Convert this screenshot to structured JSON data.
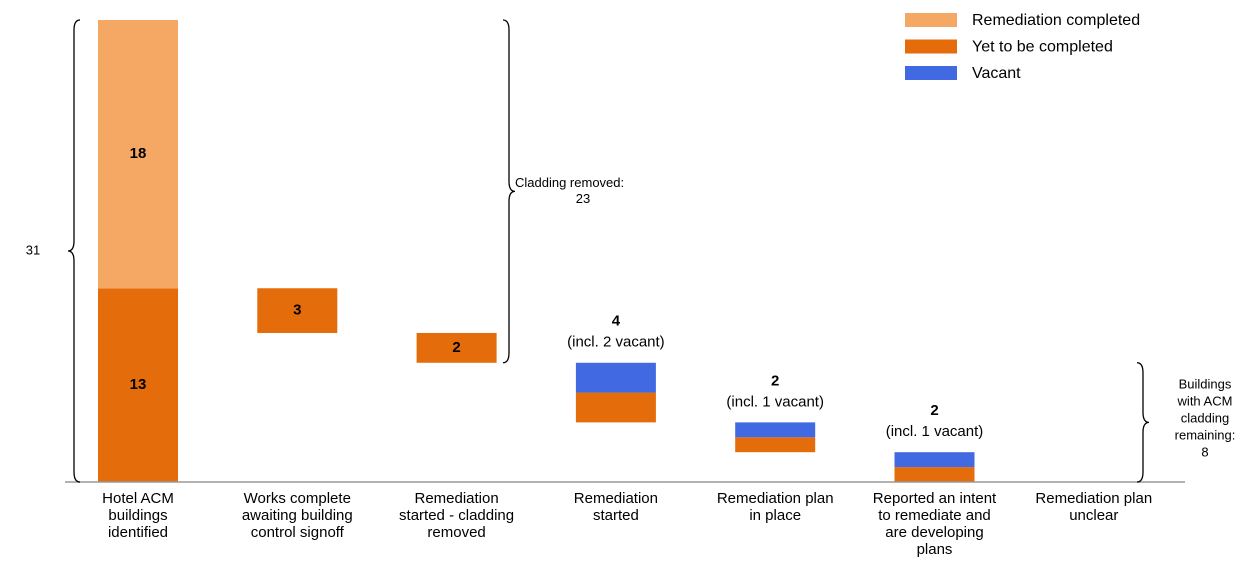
{
  "chart_data": {
    "type": "waterfall",
    "categories": [
      [
        "Hotel ACM",
        "buildings",
        "identified"
      ],
      [
        "Works complete",
        "awaiting building",
        "control signoff"
      ],
      [
        "Remediation",
        "started - cladding",
        "removed"
      ],
      [
        "Remediation",
        "started"
      ],
      [
        "Remediation plan",
        "in place"
      ],
      [
        "Reported an intent",
        "to remediate and",
        "are developing",
        "plans"
      ],
      [
        "Remediation plan",
        "unclear"
      ]
    ],
    "series": [
      {
        "name": "Remediation completed",
        "color": "#f5a863",
        "values": [
          18,
          null,
          null,
          null,
          null,
          null,
          null
        ]
      },
      {
        "name": "Yet to be completed",
        "color": "#e46c0a",
        "values": [
          13,
          3,
          2,
          2,
          1,
          1,
          null
        ]
      },
      {
        "name": "Vacant",
        "color": "#4169e1",
        "values": [
          null,
          null,
          null,
          2,
          1,
          1,
          null
        ]
      }
    ],
    "totals": [
      null,
      null,
      null,
      4,
      2,
      2,
      null
    ],
    "total_notes": [
      null,
      null,
      null,
      "(incl. 2 vacant)",
      "(incl. 1 vacant)",
      "(incl. 1 vacant)",
      null
    ],
    "braces": [
      {
        "value": 31
      },
      {
        "text": [
          "Cladding removed:"
        ],
        "value": 23
      },
      {
        "text": [
          "Buildings",
          "with ACM",
          "cladding",
          "remaining:"
        ],
        "value": 8
      }
    ],
    "legend": "top-right"
  }
}
